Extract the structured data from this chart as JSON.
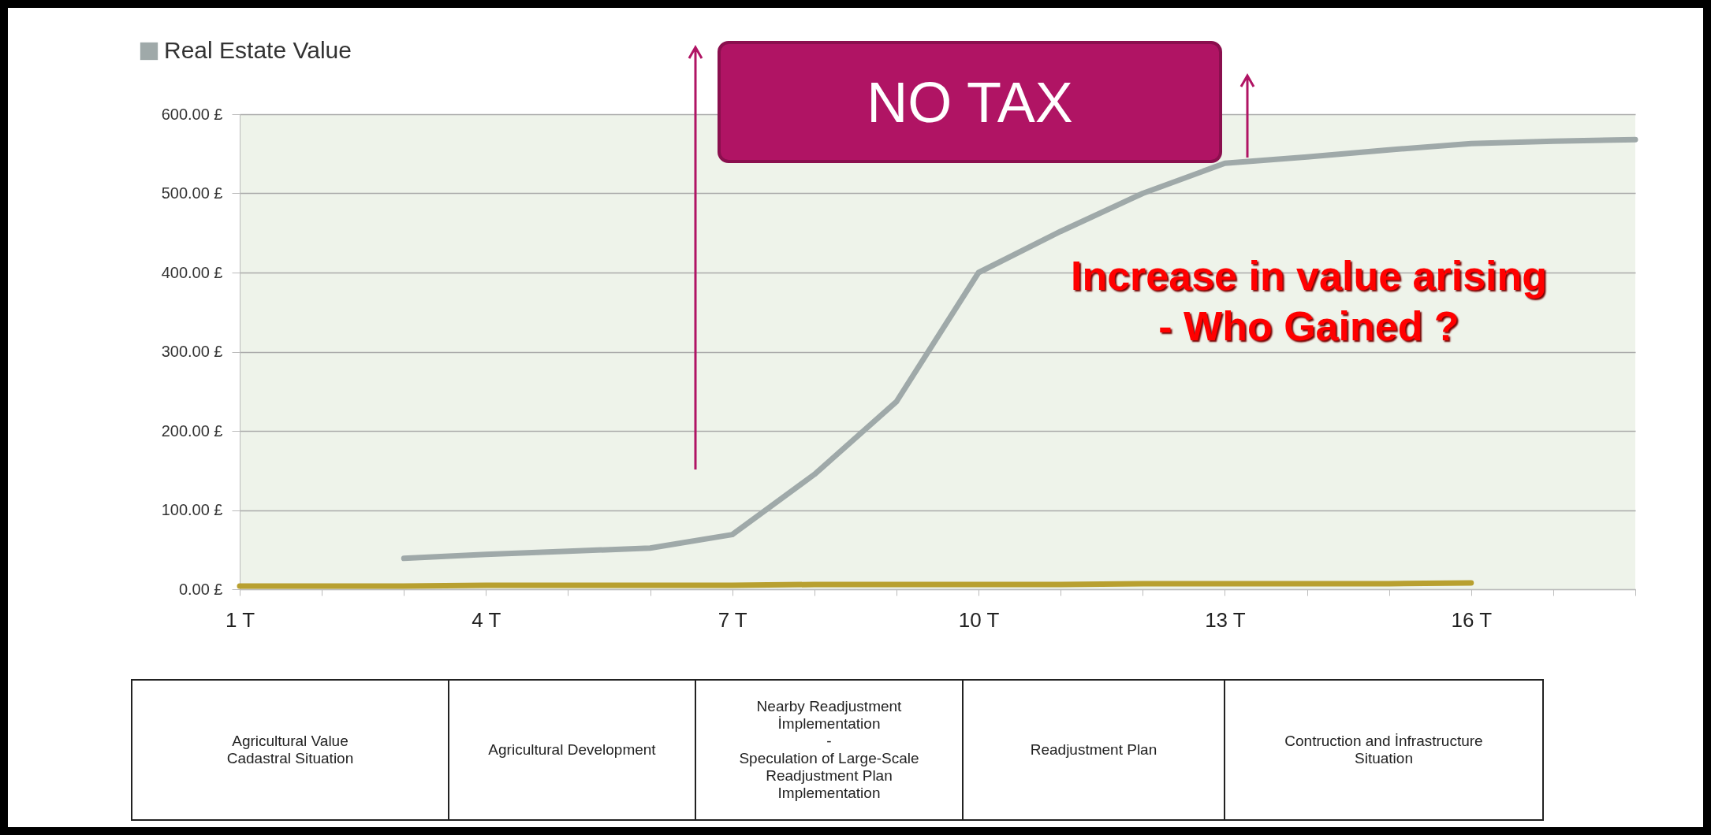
{
  "chart_data": {
    "type": "line",
    "legend": "top left",
    "grid": "y",
    "marker": "none",
    "line_style": "solid",
    "categories": [
      "1 T",
      null,
      null,
      "4 T",
      null,
      null,
      "7 T",
      null,
      null,
      "10 T",
      null,
      null,
      "13 T",
      null,
      null,
      "16 T",
      null,
      null
    ],
    "series": [
      {
        "name": "Real Estate Value",
        "color": "#9fa9a9",
        "values": [
          null,
          null,
          39,
          44,
          48,
          52,
          69,
          145,
          237,
          400,
          452,
          500,
          538,
          546,
          555,
          563,
          566,
          568
        ]
      },
      {
        "color": "#b8a030",
        "values": [
          4,
          4,
          4,
          5,
          5,
          5,
          5,
          6,
          6,
          6,
          6,
          7,
          7,
          7,
          7,
          8,
          null,
          null
        ]
      }
    ],
    "ylim": [
      0,
      600
    ],
    "yticks": [
      {
        "value": 0,
        "label": "0.00 £"
      },
      {
        "value": 100,
        "label": "100.00 £"
      },
      {
        "value": 200,
        "label": "200.00 £"
      },
      {
        "value": 300,
        "label": "300.00 £"
      },
      {
        "value": 400,
        "label": "400.00 £"
      },
      {
        "value": 500,
        "label": "500.00 £"
      },
      {
        "value": 600,
        "label": "600.00 £"
      }
    ],
    "annotations": [
      "NO TAX",
      "Increase in value arising\n- Who Gained ?",
      "Agricultural Value\nCadastral Situation",
      "Agricultural Development",
      "Nearby Readjustment\nİmplementation\n-\nSpeculation of Large-Scale\nReadjustment Plan\nImplementation",
      "Readjustment Plan",
      "Contruction and İnfrastructure\nSituation"
    ]
  }
}
